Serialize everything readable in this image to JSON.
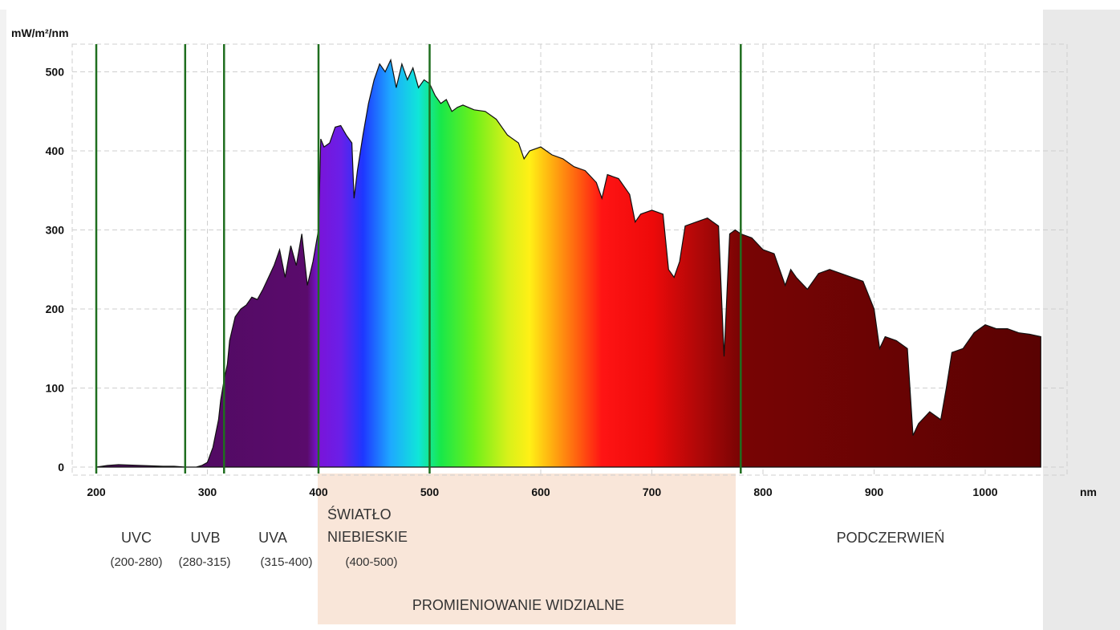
{
  "chart_data": {
    "type": "area",
    "ylabel": "mW/m²/nm",
    "xlabel": "nm",
    "xlim": [
      200,
      1050
    ],
    "ylim": [
      0,
      540
    ],
    "grid": true,
    "x_ticks": [
      200,
      300,
      400,
      500,
      600,
      700,
      800,
      900,
      1000
    ],
    "y_ticks": [
      0,
      100,
      200,
      300,
      400,
      500
    ],
    "band_boundaries": [
      200,
      280,
      315,
      400,
      500,
      780
    ],
    "regions": [
      {
        "key": "uvc",
        "label": "UVC",
        "range": "(200-280)"
      },
      {
        "key": "uvb",
        "label": "UVB",
        "range": "(280-315)"
      },
      {
        "key": "uva",
        "label": "UVA",
        "range": "(315-400)"
      },
      {
        "key": "blue",
        "label": "ŚWIATŁO\nNIEBIESKIE",
        "range": "(400-500)"
      },
      {
        "key": "visible",
        "label": "PROMIENIOWANIE WIDZIALNE",
        "range": ""
      },
      {
        "key": "ir",
        "label": "PODCZERWIEŃ",
        "range": ""
      }
    ],
    "series": [
      {
        "x": [
          200,
          210,
          220,
          240,
          260,
          270,
          280,
          290,
          295,
          300,
          305,
          310,
          312,
          315,
          318,
          320,
          325,
          330,
          335,
          340,
          345,
          350,
          355,
          360,
          365,
          370,
          375,
          380,
          385,
          390,
          395,
          400,
          402,
          405,
          410,
          415,
          420,
          425,
          430,
          432,
          435,
          440,
          445,
          450,
          455,
          460,
          465,
          470,
          475,
          480,
          485,
          490,
          495,
          500,
          505,
          510,
          515,
          520,
          525,
          530,
          540,
          550,
          560,
          570,
          580,
          585,
          590,
          600,
          610,
          620,
          630,
          640,
          650,
          655,
          660,
          670,
          680,
          685,
          690,
          700,
          710,
          715,
          720,
          725,
          730,
          740,
          750,
          760,
          765,
          770,
          775,
          780,
          790,
          800,
          810,
          820,
          825,
          830,
          840,
          850,
          860,
          870,
          880,
          890,
          900,
          905,
          910,
          920,
          930,
          935,
          940,
          950,
          960,
          965,
          970,
          980,
          990,
          1000,
          1010,
          1020,
          1030,
          1040,
          1050
        ],
        "y": [
          0,
          2,
          3,
          2,
          1,
          1,
          0,
          0,
          2,
          6,
          25,
          60,
          85,
          110,
          130,
          160,
          190,
          200,
          205,
          215,
          212,
          225,
          240,
          255,
          275,
          240,
          280,
          255,
          295,
          230,
          260,
          300,
          415,
          405,
          410,
          430,
          432,
          420,
          410,
          340,
          375,
          420,
          460,
          490,
          510,
          500,
          515,
          480,
          510,
          490,
          505,
          480,
          490,
          485,
          470,
          460,
          465,
          450,
          455,
          458,
          452,
          450,
          440,
          420,
          410,
          390,
          400,
          405,
          395,
          390,
          380,
          375,
          360,
          340,
          370,
          365,
          345,
          310,
          320,
          325,
          320,
          250,
          240,
          260,
          305,
          310,
          315,
          305,
          140,
          295,
          300,
          295,
          290,
          275,
          270,
          230,
          250,
          240,
          225,
          245,
          250,
          245,
          240,
          235,
          200,
          150,
          165,
          160,
          150,
          40,
          55,
          70,
          60,
          100,
          145,
          150,
          170,
          180,
          175,
          175,
          170,
          168,
          165
        ]
      }
    ]
  }
}
